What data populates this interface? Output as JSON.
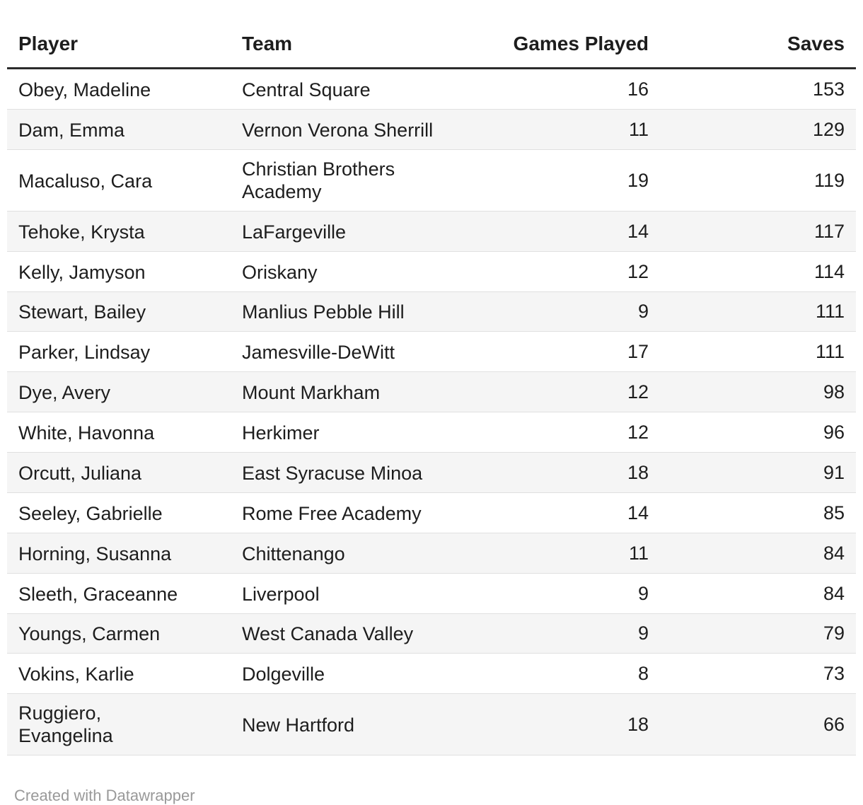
{
  "chart_data": {
    "type": "table",
    "columns": [
      "Player",
      "Team",
      "Games Played",
      "Saves"
    ],
    "column_align": [
      "left",
      "left",
      "right",
      "right"
    ],
    "rows": [
      [
        "Obey, Madeline",
        "Central Square",
        "16",
        "153"
      ],
      [
        "Dam, Emma",
        "Vernon Verona Sherrill",
        "11",
        "129"
      ],
      [
        "Macaluso, Cara",
        "Christian Brothers Academy",
        "19",
        "119"
      ],
      [
        "Tehoke, Krysta",
        "LaFargeville",
        "14",
        "117"
      ],
      [
        "Kelly, Jamyson",
        "Oriskany",
        "12",
        "114"
      ],
      [
        "Stewart, Bailey",
        "Manlius Pebble Hill",
        "9",
        "111"
      ],
      [
        "Parker, Lindsay",
        "Jamesville-DeWitt",
        "17",
        "111"
      ],
      [
        "Dye, Avery",
        "Mount Markham",
        "12",
        "98"
      ],
      [
        "White, Havonna",
        "Herkimer",
        "12",
        "96"
      ],
      [
        "Orcutt, Juliana",
        "East Syracuse Minoa",
        "18",
        "91"
      ],
      [
        "Seeley, Gabrielle",
        "Rome Free Academy",
        "14",
        "85"
      ],
      [
        "Horning, Susanna",
        "Chittenango",
        "11",
        "84"
      ],
      [
        "Sleeth, Graceanne",
        "Liverpool",
        "9",
        "84"
      ],
      [
        "Youngs, Carmen",
        "West Canada Valley",
        "9",
        "79"
      ],
      [
        "Vokins, Karlie",
        "Dolgeville",
        "8",
        "73"
      ],
      [
        "Ruggiero, Evangelina",
        "New Hartford",
        "18",
        "66"
      ]
    ],
    "layout": {
      "striped_rows": "even rows shaded",
      "grid": "horizontal row dividers only"
    }
  },
  "footer": {
    "attribution": "Created with Datawrapper"
  },
  "colors": {
    "background": "#ffffff",
    "text": "#1d1d1d",
    "header_rule": "#2b2b2b",
    "row_divider": "#e0e0e0",
    "stripe": "#f5f5f5",
    "attribution_text": "#999999"
  }
}
